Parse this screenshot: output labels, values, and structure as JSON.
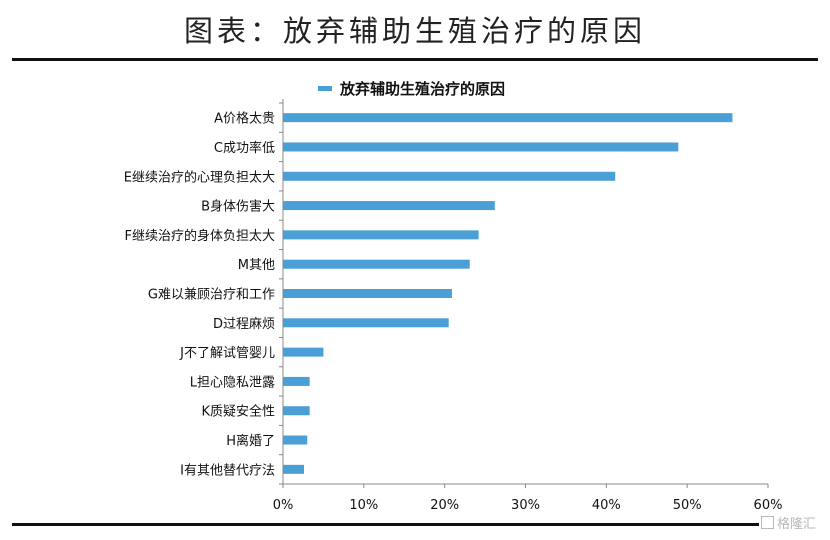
{
  "page": {
    "title": "图表：放弃辅助生殖治疗的原因",
    "watermark": "格隆汇"
  },
  "chart_data": {
    "type": "bar",
    "orientation": "horizontal",
    "legend": {
      "label": "放弃辅助生殖治疗的原因",
      "position": "top",
      "color": "#4a9fd6"
    },
    "categories": [
      "A价格太贵",
      "C成功率低",
      "E继续治疗的心理负担太大",
      "B身体伤害大",
      "F继续治疗的身体负担太大",
      "M其他",
      "G难以兼顾治疗和工作",
      "D过程麻烦",
      "J不了解试管婴儿",
      "L担心隐私泄露",
      "K质疑安全性",
      "H离婚了",
      "I有其他替代疗法"
    ],
    "values": [
      55.6,
      48.9,
      41.1,
      26.2,
      24.2,
      23.1,
      20.9,
      20.5,
      5.0,
      3.3,
      3.3,
      3.0,
      2.6
    ],
    "xlim": [
      0,
      60
    ],
    "xticks": [
      0,
      10,
      20,
      30,
      40,
      50,
      60
    ],
    "xtick_labels": [
      "0%",
      "10%",
      "20%",
      "30%",
      "40%",
      "50%",
      "60%"
    ],
    "bar_color": "#4a9fd6",
    "grid": false
  }
}
